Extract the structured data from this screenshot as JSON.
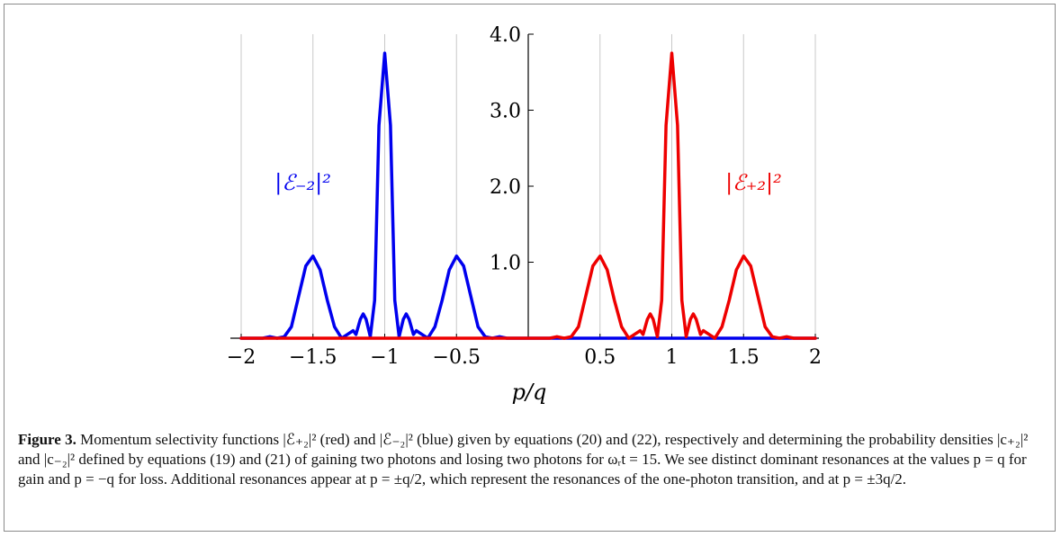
{
  "caption": {
    "label": "Figure 3.",
    "text": "Momentum selectivity functions |ℰ₊₂|² (red) and |ℰ₋₂|² (blue) given by equations (20) and (22), respectively and determining the probability densities |c₊₂|² and |c₋₂|² defined by equations (19) and (21) of gaining two photons and losing two photons for ωᵣt = 15. We see distinct dominant resonances at the values p = q for gain and p = −q for loss. Additional resonances appear at p = ±q/2, which represent the resonances of the one-photon transition, and at p = ±3q/2."
  },
  "chart_data": {
    "type": "line",
    "xlabel": "p/q",
    "ylabel": "",
    "xlim": [
      -2,
      2
    ],
    "ylim": [
      0,
      4.0
    ],
    "x_ticks": [
      -2,
      -1.5,
      -1,
      -0.5,
      0.5,
      1,
      1.5,
      2
    ],
    "x_tick_labels": [
      "−2",
      "−1.5",
      "−1",
      "−0.5",
      "0.5",
      "1",
      "1.5",
      "2"
    ],
    "y_ticks": [
      1.0,
      2.0,
      3.0,
      4.0
    ],
    "y_tick_labels": [
      "1.0",
      "2.0",
      "3.0",
      "4.0"
    ],
    "grid": "vertical lines at x ticks",
    "series": [
      {
        "name": "|ℰ₋₂|²",
        "color": "#0000ee",
        "points": [
          [
            -2.0,
            0.0
          ],
          [
            -1.85,
            0.0
          ],
          [
            -1.8,
            0.02
          ],
          [
            -1.75,
            0.0
          ],
          [
            -1.7,
            0.02
          ],
          [
            -1.65,
            0.15
          ],
          [
            -1.6,
            0.55
          ],
          [
            -1.55,
            0.95
          ],
          [
            -1.5,
            1.08
          ],
          [
            -1.45,
            0.9
          ],
          [
            -1.4,
            0.5
          ],
          [
            -1.35,
            0.15
          ],
          [
            -1.3,
            0.0
          ],
          [
            -1.26,
            0.05
          ],
          [
            -1.22,
            0.1
          ],
          [
            -1.2,
            0.05
          ],
          [
            -1.17,
            0.25
          ],
          [
            -1.15,
            0.32
          ],
          [
            -1.13,
            0.25
          ],
          [
            -1.1,
            0.02
          ],
          [
            -1.07,
            0.5
          ],
          [
            -1.04,
            2.8
          ],
          [
            -1.0,
            3.75
          ],
          [
            -0.96,
            2.8
          ],
          [
            -0.93,
            0.5
          ],
          [
            -0.9,
            0.02
          ],
          [
            -0.87,
            0.25
          ],
          [
            -0.85,
            0.32
          ],
          [
            -0.83,
            0.25
          ],
          [
            -0.8,
            0.05
          ],
          [
            -0.78,
            0.1
          ],
          [
            -0.74,
            0.05
          ],
          [
            -0.7,
            0.0
          ],
          [
            -0.65,
            0.15
          ],
          [
            -0.6,
            0.5
          ],
          [
            -0.55,
            0.9
          ],
          [
            -0.5,
            1.08
          ],
          [
            -0.45,
            0.95
          ],
          [
            -0.4,
            0.55
          ],
          [
            -0.35,
            0.15
          ],
          [
            -0.3,
            0.02
          ],
          [
            -0.25,
            0.0
          ],
          [
            -0.2,
            0.02
          ],
          [
            -0.15,
            0.0
          ],
          [
            0.0,
            0.0
          ],
          [
            2.0,
            0.0
          ]
        ]
      },
      {
        "name": "|ℰ₊₂|²",
        "color": "#ee0000",
        "points": [
          [
            -2.0,
            0.0
          ],
          [
            0.0,
            0.0
          ],
          [
            0.15,
            0.0
          ],
          [
            0.2,
            0.02
          ],
          [
            0.25,
            0.0
          ],
          [
            0.3,
            0.02
          ],
          [
            0.35,
            0.15
          ],
          [
            0.4,
            0.55
          ],
          [
            0.45,
            0.95
          ],
          [
            0.5,
            1.08
          ],
          [
            0.55,
            0.9
          ],
          [
            0.6,
            0.5
          ],
          [
            0.65,
            0.15
          ],
          [
            0.7,
            0.0
          ],
          [
            0.74,
            0.05
          ],
          [
            0.78,
            0.1
          ],
          [
            0.8,
            0.05
          ],
          [
            0.83,
            0.25
          ],
          [
            0.85,
            0.32
          ],
          [
            0.87,
            0.25
          ],
          [
            0.9,
            0.02
          ],
          [
            0.93,
            0.5
          ],
          [
            0.96,
            2.8
          ],
          [
            1.0,
            3.75
          ],
          [
            1.04,
            2.8
          ],
          [
            1.07,
            0.5
          ],
          [
            1.1,
            0.02
          ],
          [
            1.13,
            0.25
          ],
          [
            1.15,
            0.32
          ],
          [
            1.17,
            0.25
          ],
          [
            1.2,
            0.05
          ],
          [
            1.22,
            0.1
          ],
          [
            1.26,
            0.05
          ],
          [
            1.3,
            0.0
          ],
          [
            1.35,
            0.15
          ],
          [
            1.4,
            0.5
          ],
          [
            1.45,
            0.9
          ],
          [
            1.5,
            1.08
          ],
          [
            1.55,
            0.95
          ],
          [
            1.6,
            0.55
          ],
          [
            1.65,
            0.15
          ],
          [
            1.7,
            0.02
          ],
          [
            1.75,
            0.0
          ],
          [
            1.8,
            0.02
          ],
          [
            1.85,
            0.0
          ],
          [
            2.0,
            0.0
          ]
        ]
      }
    ],
    "annotations": [
      {
        "text": "|ℰ₋₂|²",
        "x": -1.57,
        "y": 2.05,
        "color": "#0000ee"
      },
      {
        "text": "|ℰ₊₂|²",
        "x": 1.57,
        "y": 2.05,
        "color": "#ee0000"
      }
    ]
  }
}
